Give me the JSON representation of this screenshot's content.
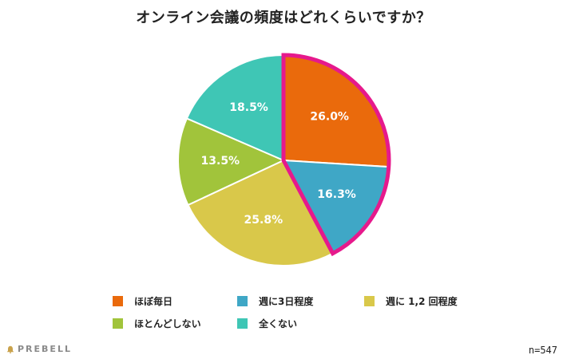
{
  "chart_data": {
    "type": "pie",
    "title": "オンライン会議の頻度はどれくらいですか？",
    "categories": [
      "ほぼ毎日",
      "週に3日程度",
      "週に 1,2 回程度",
      "ほとんどしない",
      "全くない"
    ],
    "values": [
      26.0,
      16.3,
      25.8,
      13.5,
      18.5
    ],
    "value_labels": [
      "26.0%",
      "16.3%",
      "25.8%",
      "13.5%",
      "18.5%"
    ],
    "colors": [
      "#EA6A0C",
      "#3FA7C6",
      "#D9C84A",
      "#A1C43B",
      "#3FC6B5"
    ],
    "highlight_color": "#E6198C",
    "highlighted_categories": [
      "ほぼ毎日",
      "週に3日程度"
    ],
    "legend_position": "bottom",
    "sample_size": "n=547"
  },
  "brand": {
    "logo_text": "PREBELL"
  }
}
